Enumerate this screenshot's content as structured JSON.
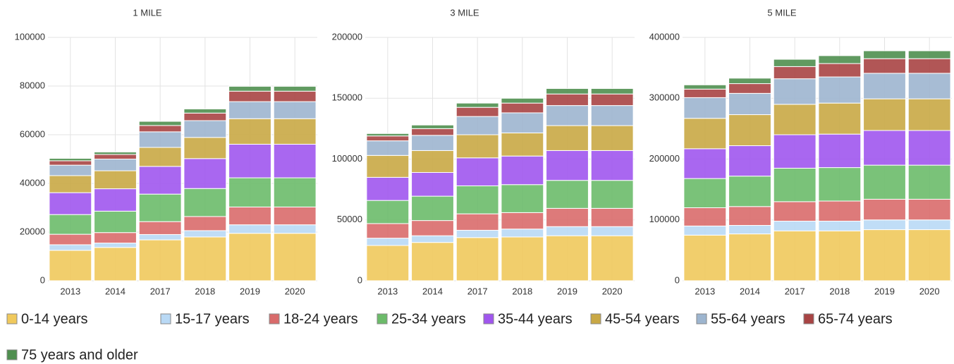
{
  "chart_data": [
    {
      "type": "bar",
      "stacked": true,
      "title": "1 MILE",
      "categories": [
        "2013",
        "2014",
        "2017",
        "2018",
        "2019",
        "2020"
      ],
      "ylim": [
        0,
        100000
      ],
      "yticks": [
        0,
        20000,
        40000,
        60000,
        80000,
        100000
      ],
      "grid": true,
      "series": [
        {
          "name": "0-14 years",
          "color": "#f0c95c",
          "values": [
            12500,
            13700,
            16800,
            18000,
            19500,
            19500
          ]
        },
        {
          "name": "15-17 years",
          "color": "#b9d9f5",
          "values": [
            2300,
            1800,
            2200,
            2600,
            3500,
            3500
          ]
        },
        {
          "name": "18-24 years",
          "color": "#d96b6b",
          "values": [
            4300,
            4300,
            5300,
            5800,
            7300,
            7300
          ]
        },
        {
          "name": "25-34 years",
          "color": "#6cbb6a",
          "values": [
            8100,
            8800,
            11300,
            11500,
            12000,
            12000
          ]
        },
        {
          "name": "35-44 years",
          "color": "#a056ee",
          "values": [
            9000,
            9200,
            11400,
            12300,
            13800,
            13800
          ]
        },
        {
          "name": "45-54 years",
          "color": "#c9a845",
          "values": [
            7000,
            7400,
            7800,
            8700,
            10500,
            10500
          ]
        },
        {
          "name": "55-64 years",
          "color": "#9db5cf",
          "values": [
            4300,
            4800,
            6400,
            6900,
            7000,
            7000
          ]
        },
        {
          "name": "65-74 years",
          "color": "#a84444",
          "values": [
            1800,
            1900,
            2600,
            3100,
            4300,
            4300
          ]
        },
        {
          "name": "75 years and older",
          "color": "#4f8f4f",
          "values": [
            1000,
            1000,
            1700,
            1700,
            2000,
            2000
          ]
        }
      ]
    },
    {
      "type": "bar",
      "stacked": true,
      "title": "3 MILE",
      "categories": [
        "2013",
        "2014",
        "2017",
        "2018",
        "2019",
        "2020"
      ],
      "ylim": [
        0,
        200000
      ],
      "yticks": [
        0,
        50000,
        100000,
        150000,
        200000
      ],
      "grid": true,
      "series": [
        {
          "name": "0-14 years",
          "color": "#f0c95c",
          "values": [
            29000,
            31500,
            35500,
            36000,
            37000,
            37000
          ]
        },
        {
          "name": "15-17 years",
          "color": "#b9d9f5",
          "values": [
            6000,
            5500,
            6000,
            6500,
            7500,
            7500
          ]
        },
        {
          "name": "18-24 years",
          "color": "#d96b6b",
          "values": [
            12000,
            12500,
            13500,
            13500,
            15000,
            15000
          ]
        },
        {
          "name": "25-34 years",
          "color": "#6cbb6a",
          "values": [
            19000,
            20000,
            23000,
            23000,
            23000,
            23000
          ]
        },
        {
          "name": "35-44 years",
          "color": "#a056ee",
          "values": [
            19000,
            19500,
            23000,
            23500,
            24500,
            24500
          ]
        },
        {
          "name": "45-54 years",
          "color": "#c9a845",
          "values": [
            18000,
            18000,
            19000,
            19000,
            20500,
            20500
          ]
        },
        {
          "name": "55-64 years",
          "color": "#9db5cf",
          "values": [
            12000,
            12500,
            15000,
            16500,
            16500,
            16500
          ]
        },
        {
          "name": "65-74 years",
          "color": "#a84444",
          "values": [
            4000,
            5500,
            7500,
            8000,
            9500,
            9500
          ]
        },
        {
          "name": "75 years and older",
          "color": "#4f8f4f",
          "values": [
            2000,
            3000,
            3500,
            4000,
            4500,
            4500
          ]
        }
      ]
    },
    {
      "type": "bar",
      "stacked": true,
      "title": "5 MILE",
      "categories": [
        "2013",
        "2014",
        "2017",
        "2018",
        "2019",
        "2020"
      ],
      "ylim": [
        0,
        400000
      ],
      "yticks": [
        0,
        100000,
        200000,
        300000,
        400000
      ],
      "grid": true,
      "series": [
        {
          "name": "0-14 years",
          "color": "#f0c95c",
          "values": [
            75000,
            77000,
            82000,
            82000,
            84000,
            84000
          ]
        },
        {
          "name": "15-17 years",
          "color": "#b9d9f5",
          "values": [
            15000,
            14000,
            16000,
            16000,
            16000,
            16000
          ]
        },
        {
          "name": "18-24 years",
          "color": "#d96b6b",
          "values": [
            30000,
            31000,
            32000,
            33000,
            34000,
            34000
          ]
        },
        {
          "name": "25-34 years",
          "color": "#6cbb6a",
          "values": [
            48000,
            50000,
            55000,
            55000,
            56000,
            56000
          ]
        },
        {
          "name": "35-44 years",
          "color": "#a056ee",
          "values": [
            49000,
            50000,
            55000,
            55000,
            57000,
            57000
          ]
        },
        {
          "name": "45-54 years",
          "color": "#c9a845",
          "values": [
            50000,
            51000,
            50000,
            51000,
            52000,
            52000
          ]
        },
        {
          "name": "55-64 years",
          "color": "#9db5cf",
          "values": [
            34000,
            35000,
            42000,
            43000,
            42000,
            42000
          ]
        },
        {
          "name": "65-74 years",
          "color": "#a84444",
          "values": [
            14000,
            16000,
            20000,
            22000,
            24000,
            24000
          ]
        },
        {
          "name": "75 years and older",
          "color": "#4f8f4f",
          "values": [
            7000,
            9000,
            12000,
            13000,
            13000,
            13000
          ]
        }
      ]
    }
  ]
}
